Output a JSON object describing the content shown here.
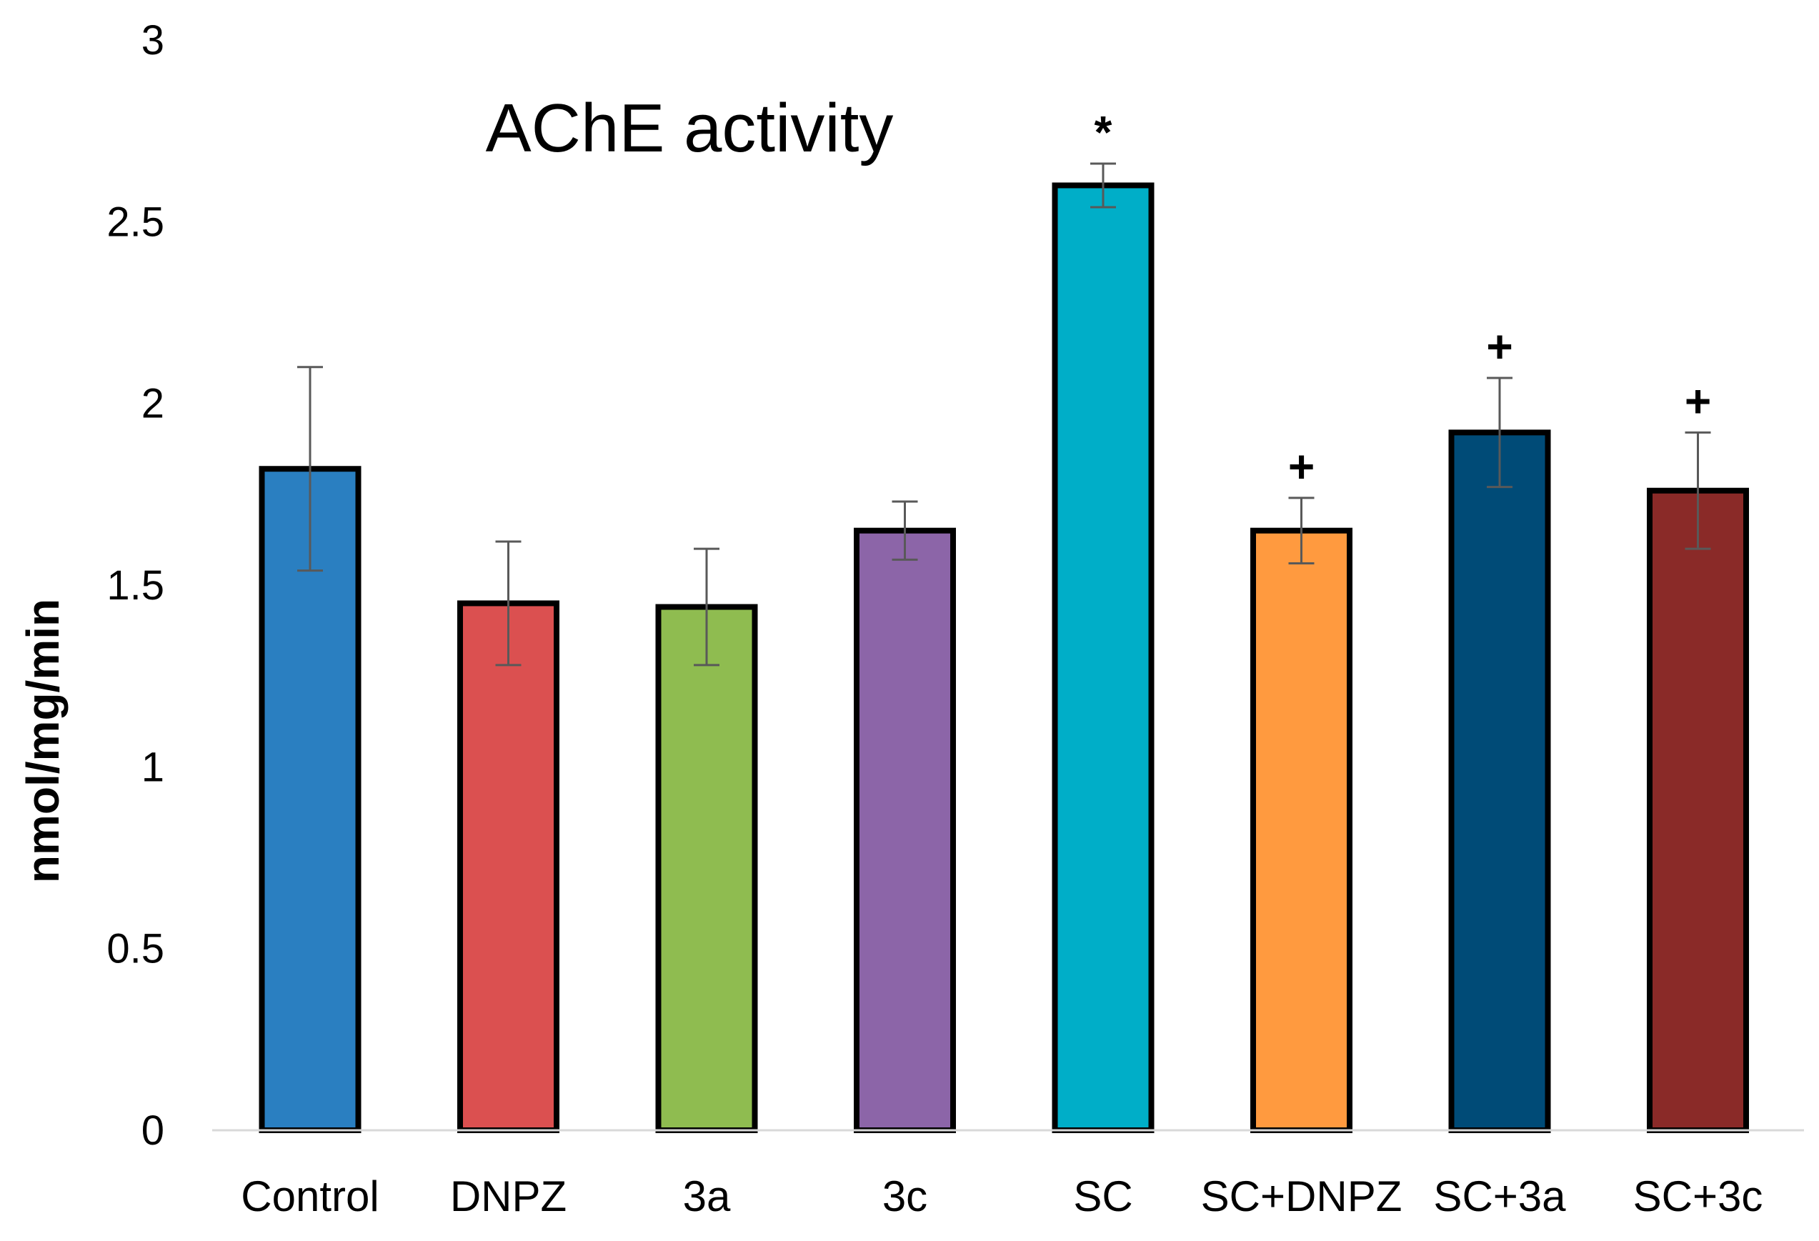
{
  "chart_data": {
    "type": "bar",
    "title": "AChE activity",
    "xlabel": "",
    "ylabel": "nmol/mg/min",
    "ylim": [
      0,
      3
    ],
    "yticks": [
      0,
      0.5,
      1,
      1.5,
      2,
      2.5,
      3
    ],
    "ytick_labels": [
      "0",
      "0.5",
      "1",
      "1.5",
      "2",
      "2.5",
      "3"
    ],
    "grid": false,
    "legend": "none",
    "categories": [
      "Control",
      "DNPZ",
      "3a",
      "3c",
      "SC",
      "SC+DNPZ",
      "SC+3a",
      "SC+3c"
    ],
    "values": [
      1.82,
      1.45,
      1.44,
      1.65,
      2.6,
      1.65,
      1.92,
      1.76
    ],
    "errors": [
      0.28,
      0.17,
      0.16,
      0.08,
      0.06,
      0.09,
      0.15,
      0.16
    ],
    "significance": [
      "",
      "",
      "",
      "",
      "*",
      "+",
      "+",
      "+"
    ],
    "colors": [
      "#2a7fc1",
      "#db5050",
      "#8fbc50",
      "#8c65a8",
      "#00aec8",
      "#ff9a3f",
      "#004b77",
      "#8a2a28"
    ]
  }
}
